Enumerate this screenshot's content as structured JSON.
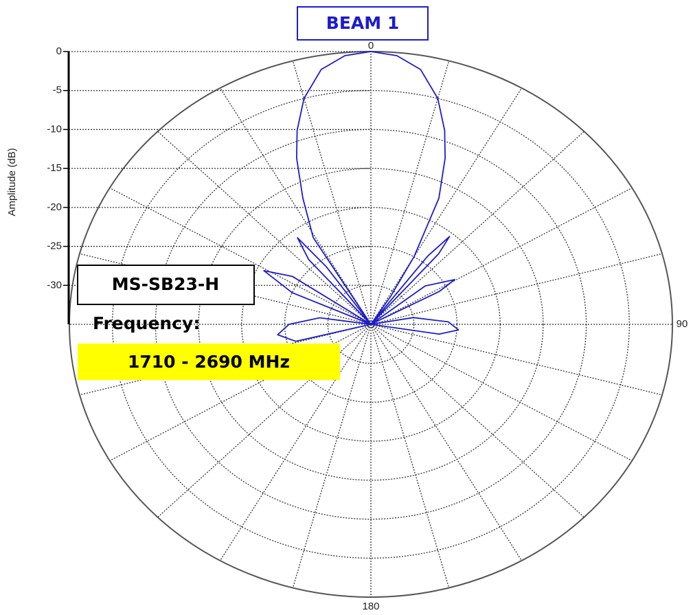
{
  "chart_data": {
    "type": "polar",
    "title": "BEAM 1",
    "y_label": "Amplitude (dB)",
    "annotations": {
      "model": "MS-SB23-H",
      "frequency_label": "Frequency:",
      "frequency": "1710 - 2690 MHz"
    },
    "theta": [
      -112,
      -104,
      -97,
      -90,
      -82,
      -72,
      -66,
      -61,
      -56,
      -48,
      -41,
      -37.5,
      -35,
      -33.5,
      -31,
      -26,
      -22,
      -19,
      -15,
      -10,
      -5,
      0,
      5,
      10,
      15,
      19,
      22,
      26,
      30,
      32.6,
      34,
      37,
      39,
      41,
      44,
      52,
      59.5,
      62,
      70,
      80,
      88,
      94,
      99,
      106
    ],
    "series": [
      {
        "color": "#1c1ccc",
        "values": [
          -35,
          -26,
          -24.1,
          -25.5,
          -29,
          -35,
          -25,
          -20.8,
          -24,
          -35,
          -24,
          -21,
          -26,
          -35,
          -22,
          -17,
          -12,
          -8.7,
          -5,
          -1.8,
          -0.4,
          0,
          -0.4,
          -1.8,
          -5,
          -8.7,
          -12,
          -17,
          -25,
          -30.8,
          -35,
          -24,
          -20.5,
          -23,
          -35,
          -27,
          -23.7,
          -26,
          -35,
          -30,
          -26,
          -24.8,
          -27,
          -35
        ]
      }
    ],
    "rlim": [
      -35,
      0
    ],
    "rticks": [
      0,
      -5,
      -10,
      -15,
      -20,
      -25,
      -30
    ],
    "theta_ticks": [
      0,
      90,
      180
    ],
    "theta_grid": [
      0,
      15,
      30,
      45,
      60,
      75,
      90,
      105,
      120,
      135,
      150,
      165,
      180,
      195,
      210,
      225,
      240,
      255,
      270,
      285,
      300,
      315,
      330,
      345
    ],
    "grid": true
  }
}
